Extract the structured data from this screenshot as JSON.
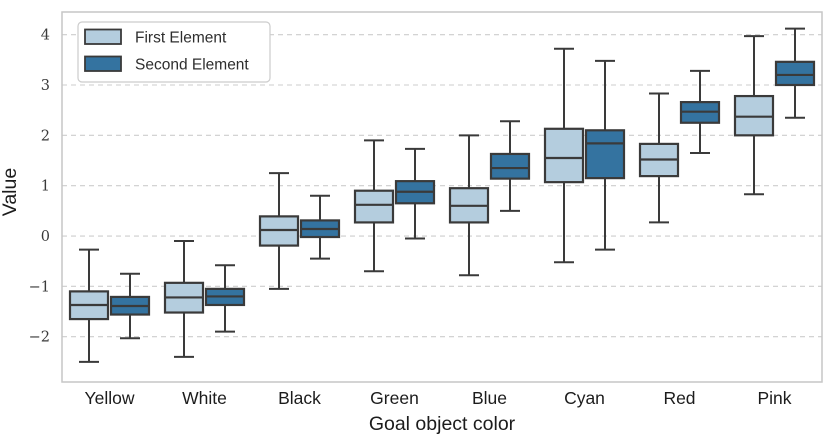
{
  "chart_data": {
    "type": "boxplot",
    "title": "",
    "xlabel": "Goal object color",
    "ylabel": "Value",
    "categories": [
      "Yellow",
      "White",
      "Black",
      "Green",
      "Blue",
      "Cyan",
      "Red",
      "Pink"
    ],
    "yticks": [
      -2,
      -1,
      0,
      1,
      2,
      3,
      4
    ],
    "ylim": [
      -2.9,
      4.45
    ],
    "grid": "horizontal-dashed",
    "legend_position": "upper-left",
    "colors": {
      "box_edge": "#3a3a3a",
      "gridline": "#cdcdcd",
      "frame": "#c6c6c6"
    },
    "series": [
      {
        "name": "First Element",
        "color": "#b4cdde",
        "boxes": [
          {
            "whislo": -2.5,
            "q1": -1.65,
            "med": -1.37,
            "q3": -1.1,
            "whishi": -0.27
          },
          {
            "whislo": -2.4,
            "q1": -1.52,
            "med": -1.22,
            "q3": -0.93,
            "whishi": -0.1
          },
          {
            "whislo": -1.05,
            "q1": -0.19,
            "med": 0.12,
            "q3": 0.39,
            "whishi": 1.25
          },
          {
            "whislo": -0.7,
            "q1": 0.27,
            "med": 0.62,
            "q3": 0.9,
            "whishi": 1.9
          },
          {
            "whislo": -0.78,
            "q1": 0.27,
            "med": 0.6,
            "q3": 0.95,
            "whishi": 2.0
          },
          {
            "whislo": -0.52,
            "q1": 1.07,
            "med": 1.55,
            "q3": 2.13,
            "whishi": 3.72
          },
          {
            "whislo": 0.27,
            "q1": 1.19,
            "med": 1.52,
            "q3": 1.83,
            "whishi": 2.83
          },
          {
            "whislo": 0.83,
            "q1": 2.0,
            "med": 2.37,
            "q3": 2.78,
            "whishi": 3.97
          }
        ]
      },
      {
        "name": "Second Element",
        "color": "#3473a0",
        "boxes": [
          {
            "whislo": -2.03,
            "q1": -1.56,
            "med": -1.39,
            "q3": -1.21,
            "whishi": -0.75
          },
          {
            "whislo": -1.9,
            "q1": -1.37,
            "med": -1.2,
            "q3": -1.05,
            "whishi": -0.58
          },
          {
            "whislo": -0.45,
            "q1": -0.02,
            "med": 0.14,
            "q3": 0.31,
            "whishi": 0.8
          },
          {
            "whislo": -0.05,
            "q1": 0.65,
            "med": 0.88,
            "q3": 1.09,
            "whishi": 1.73
          },
          {
            "whislo": 0.5,
            "q1": 1.14,
            "med": 1.35,
            "q3": 1.63,
            "whishi": 2.28
          },
          {
            "whislo": -0.27,
            "q1": 1.15,
            "med": 1.84,
            "q3": 2.1,
            "whishi": 3.48
          },
          {
            "whislo": 1.65,
            "q1": 2.25,
            "med": 2.47,
            "q3": 2.66,
            "whishi": 3.28
          },
          {
            "whislo": 2.35,
            "q1": 3.0,
            "med": 3.2,
            "q3": 3.46,
            "whishi": 4.12
          }
        ]
      }
    ]
  }
}
